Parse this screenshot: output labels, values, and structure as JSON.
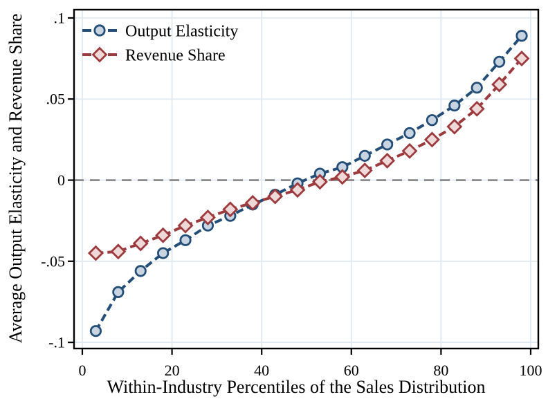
{
  "chart_data": {
    "type": "line",
    "title": "",
    "xlabel": "Within-Industry Percentiles of the Sales Distribution",
    "ylabel": "Average Output Elasticity and Revenue Share",
    "x": [
      3,
      8,
      13,
      18,
      23,
      28,
      33,
      38,
      43,
      48,
      53,
      58,
      63,
      68,
      73,
      78,
      83,
      88,
      93,
      98
    ],
    "series": [
      {
        "name": "Output Elasticity",
        "marker": "circle",
        "line_style": "dashed",
        "line_color": "#234e78",
        "marker_fill": "#c9d4e1",
        "values": [
          -0.093,
          -0.069,
          -0.056,
          -0.045,
          -0.037,
          -0.028,
          -0.022,
          -0.015,
          -0.009,
          -0.002,
          0.004,
          0.008,
          0.015,
          0.022,
          0.029,
          0.037,
          0.046,
          0.057,
          0.073,
          0.089
        ]
      },
      {
        "name": "Revenue Share",
        "marker": "diamond",
        "line_style": "dashed",
        "line_color": "#9d3a3e",
        "marker_fill": "#eed8d8",
        "values": [
          -0.045,
          -0.044,
          -0.039,
          -0.034,
          -0.028,
          -0.023,
          -0.018,
          -0.014,
          -0.01,
          -0.006,
          -0.001,
          0.002,
          0.006,
          0.012,
          0.018,
          0.025,
          0.033,
          0.044,
          0.059,
          0.075
        ]
      }
    ],
    "xticks": [
      {
        "v": 0,
        "label": "0"
      },
      {
        "v": 20,
        "label": "20"
      },
      {
        "v": 40,
        "label": "40"
      },
      {
        "v": 60,
        "label": "60"
      },
      {
        "v": 80,
        "label": "80"
      },
      {
        "v": 100,
        "label": "100"
      }
    ],
    "yticks": [
      {
        "v": 0.1,
        "label": ".1"
      },
      {
        "v": 0.05,
        "label": ".05"
      },
      {
        "v": 0,
        "label": "0"
      },
      {
        "v": -0.05,
        "label": "-.05"
      },
      {
        "v": -0.1,
        "label": "-.1"
      }
    ],
    "xlim": [
      -1.85,
      101.7
    ],
    "ylim": [
      -0.1038,
      0.1051
    ],
    "refline_y": 0,
    "grid": true,
    "legend_position": "top-left",
    "colors": {
      "background": "#ffffff",
      "grid": "#dee9f1",
      "refline": "#848484",
      "axis": "#000000",
      "text": "#000000"
    }
  }
}
